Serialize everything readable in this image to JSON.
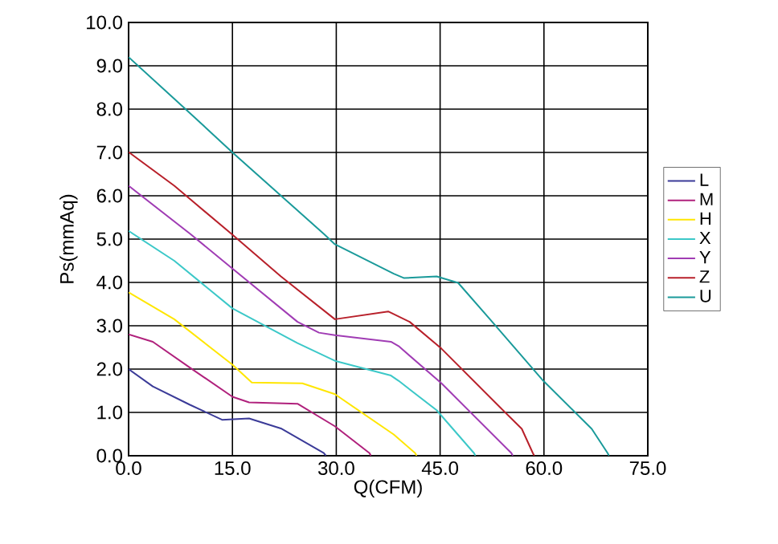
{
  "chart_data": {
    "type": "line",
    "xlabel": "Q(CFM)",
    "ylabel": "Ps(mmAq)",
    "xlim": [
      0,
      75
    ],
    "ylim": [
      0,
      10
    ],
    "xticks": [
      {
        "value": 0,
        "label": "0.0"
      },
      {
        "value": 15,
        "label": "15.0"
      },
      {
        "value": 30,
        "label": "30.0"
      },
      {
        "value": 45,
        "label": "45.0"
      },
      {
        "value": 60,
        "label": "60.0"
      },
      {
        "value": 75,
        "label": "75.0"
      }
    ],
    "yticks": [
      {
        "value": 0,
        "label": "0.0"
      },
      {
        "value": 1,
        "label": "1.0"
      },
      {
        "value": 2,
        "label": "2.0"
      },
      {
        "value": 3,
        "label": "3.0"
      },
      {
        "value": 4,
        "label": "4.0"
      },
      {
        "value": 5,
        "label": "5.0"
      },
      {
        "value": 6,
        "label": "6.0"
      },
      {
        "value": 7,
        "label": "7.0"
      },
      {
        "value": 8,
        "label": "8.0"
      },
      {
        "value": 9,
        "label": "9.0"
      },
      {
        "value": 10,
        "label": "10.0"
      }
    ],
    "grid": true,
    "legend": "right",
    "marker": "none",
    "line_style": "solid",
    "series": [
      {
        "name": "L",
        "color": "#3b3b98",
        "x": [
          0,
          3.5,
          8.8,
          13.5,
          17.4,
          22,
          28.2,
          28.5
        ],
        "values": [
          2.0,
          1.6,
          1.18,
          0.83,
          0.86,
          0.63,
          0.06,
          0
        ]
      },
      {
        "name": "M",
        "color": "#b0217c",
        "x": [
          0,
          3.5,
          8.8,
          15,
          17.4,
          24.4,
          29.8,
          34.8,
          35
        ],
        "values": [
          2.8,
          2.63,
          2.04,
          1.36,
          1.23,
          1.2,
          0.68,
          0.06,
          0
        ]
      },
      {
        "name": "H",
        "color": "#ffe600",
        "x": [
          0,
          6.6,
          15,
          17.8,
          25.1,
          29.8,
          38.3,
          41.4,
          41.6
        ],
        "values": [
          3.77,
          3.15,
          2.1,
          1.69,
          1.67,
          1.42,
          0.49,
          0.06,
          0
        ]
      },
      {
        "name": "X",
        "color": "#3cc8c8",
        "x": [
          0,
          6.6,
          15,
          24.4,
          29.8,
          37.9,
          39,
          44.5,
          49.9,
          50.1
        ],
        "values": [
          5.19,
          4.5,
          3.4,
          2.6,
          2.19,
          1.85,
          1.73,
          1.05,
          0.06,
          0
        ]
      },
      {
        "name": "Y",
        "color": "#a03cb4",
        "x": [
          0,
          8.9,
          15,
          24.4,
          27.5,
          29.8,
          37.9,
          39,
          45.2,
          55.3,
          55.5
        ],
        "values": [
          6.23,
          5.12,
          4.32,
          3.09,
          2.84,
          2.78,
          2.63,
          2.53,
          1.67,
          0.06,
          0
        ]
      },
      {
        "name": "Z",
        "color": "#b8202a",
        "x": [
          0,
          6.6,
          15,
          22,
          29.8,
          37.5,
          40.6,
          45.2,
          53.7,
          56.8,
          58.4,
          58.6
        ],
        "values": [
          7.01,
          6.23,
          5.1,
          4.14,
          3.15,
          3.33,
          3.09,
          2.47,
          1.11,
          0.62,
          0.06,
          0
        ]
      },
      {
        "name": "U",
        "color": "#1a9a9a",
        "x": [
          0,
          8.1,
          15,
          28.2,
          29.8,
          38.3,
          39.8,
          44.5,
          47.6,
          52.2,
          59.9,
          66.9,
          69.2,
          69.4
        ],
        "values": [
          9.2,
          8.02,
          7.0,
          5.12,
          4.88,
          4.2,
          4.1,
          4.14,
          3.99,
          3.15,
          1.73,
          0.62,
          0.06,
          0
        ]
      }
    ]
  }
}
